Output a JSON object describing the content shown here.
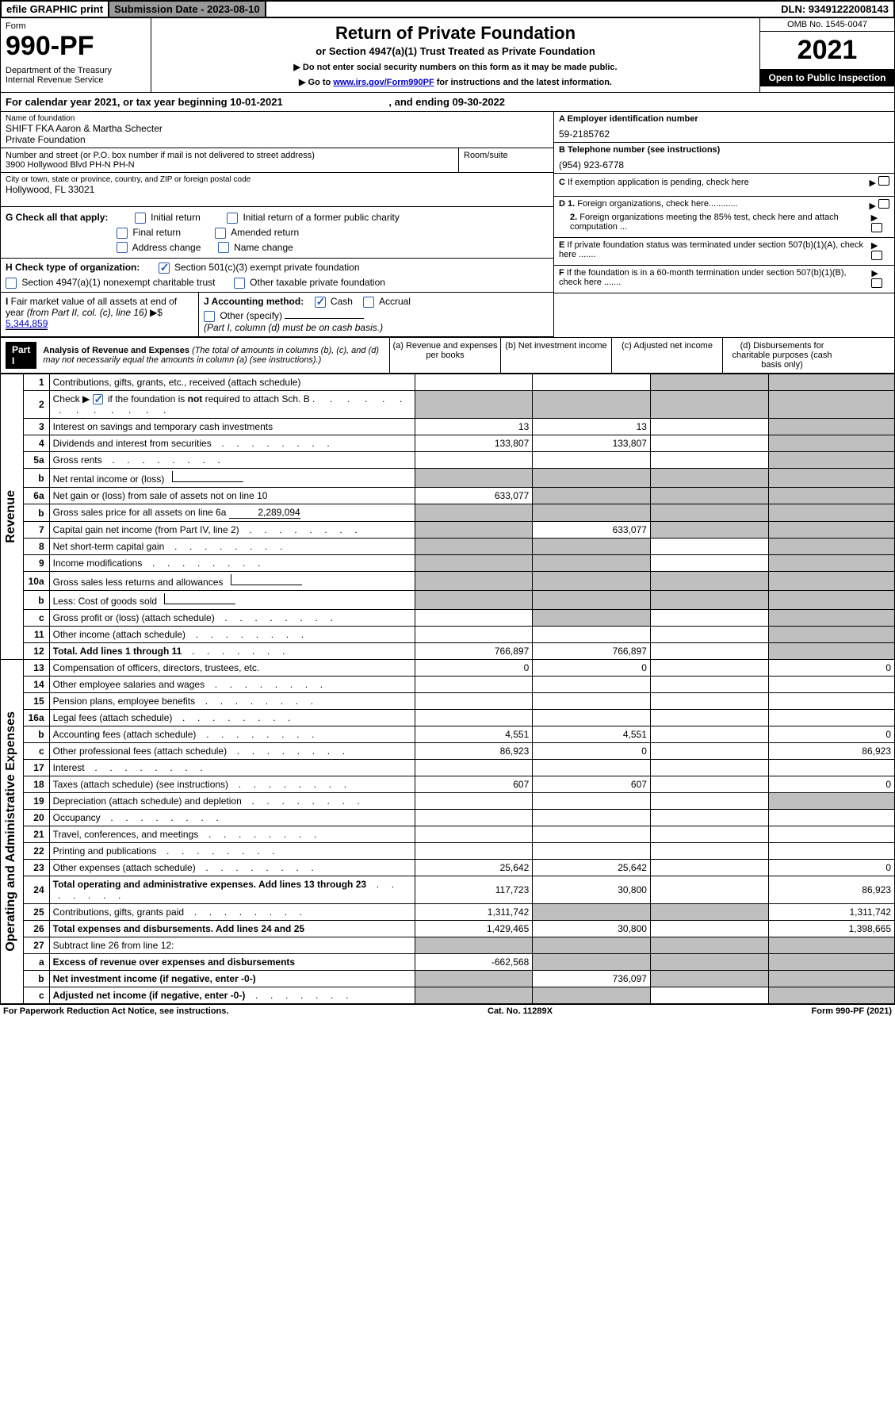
{
  "top": {
    "efile": "efile GRAPHIC print",
    "submission": "Submission Date - 2023-08-10",
    "dln": "DLN: 93491222008143"
  },
  "header": {
    "form_label": "Form",
    "form_number": "990-PF",
    "dept": "Department of the Treasury\nInternal Revenue Service",
    "title": "Return of Private Foundation",
    "subtitle": "or Section 4947(a)(1) Trust Treated as Private Foundation",
    "note1": "▶ Do not enter social security numbers on this form as it may be made public.",
    "note2_pre": "▶ Go to ",
    "note2_link": "www.irs.gov/Form990PF",
    "note2_post": " for instructions and the latest information.",
    "omb": "OMB No. 1545-0047",
    "year": "2021",
    "open": "Open to Public Inspection"
  },
  "cal_year": {
    "text": "For calendar year 2021, or tax year beginning 10-01-2021",
    "ending": ", and ending 09-30-2022"
  },
  "entity": {
    "name_label": "Name of foundation",
    "name": "SHIFT FKA Aaron & Martha Schecter\nPrivate Foundation",
    "addr_label": "Number and street (or P.O. box number if mail is not delivered to street address)",
    "addr": "3900 Hollywood Blvd PH-N PH-N",
    "room_label": "Room/suite",
    "city_label": "City or town, state or province, country, and ZIP or foreign postal code",
    "city": "Hollywood, FL  33021",
    "ein_label": "A Employer identification number",
    "ein": "59-2185762",
    "phone_label": "B Telephone number (see instructions)",
    "phone": "(954) 923-6778",
    "c_label": "C If exemption application is pending, check here",
    "d1_label": "D 1. Foreign organizations, check here............",
    "d2_label": "2. Foreign organizations meeting the 85% test, check here and attach computation ...",
    "e_label": "E If private foundation status was terminated under section 507(b)(1)(A), check here .......",
    "f_label": "F If the foundation is in a 60-month termination under section 507(b)(1)(B), check here .......",
    "g_label": "G Check all that apply:",
    "g_initial": "Initial return",
    "g_initial_former": "Initial return of a former public charity",
    "g_final": "Final return",
    "g_amended": "Amended return",
    "g_addr": "Address change",
    "g_name": "Name change",
    "h_label": "H Check type of organization:",
    "h_501c3": "Section 501(c)(3) exempt private foundation",
    "h_4947": "Section 4947(a)(1) nonexempt charitable trust",
    "h_other": "Other taxable private foundation",
    "i_label": "I Fair market value of all assets at end of year (from Part II, col. (c), line 16) ▶$ ",
    "i_value": "5,344,859",
    "j_label": "J Accounting method:",
    "j_cash": "Cash",
    "j_accrual": "Accrual",
    "j_other": "Other (specify)",
    "j_note": "(Part I, column (d) must be on cash basis.)"
  },
  "part1": {
    "label": "Part I",
    "title": "Analysis of Revenue and Expenses",
    "title_note": " (The total of amounts in columns (b), (c), and (d) may not necessarily equal the amounts in column (a) (see instructions).)",
    "col_a": "(a)   Revenue and expenses per books",
    "col_b": "(b)   Net investment income",
    "col_c": "(c)   Adjusted net income",
    "col_d": "(d)   Disbursements for charitable purposes (cash basis only)"
  },
  "side_labels": {
    "revenue": "Revenue",
    "expenses": "Operating and Administrative Expenses"
  },
  "rows": [
    {
      "n": "1",
      "desc": "Contributions, gifts, grants, etc., received (attach schedule)",
      "a": "",
      "b": "",
      "c": "g",
      "d": "g"
    },
    {
      "n": "2",
      "desc": "Check ▶ ☑ if the foundation is not required to attach Sch. B",
      "a": "g",
      "b": "g",
      "c": "g",
      "d": "g",
      "dotfill": true,
      "bold_not": true
    },
    {
      "n": "3",
      "desc": "Interest on savings and temporary cash investments",
      "a": "13",
      "b": "13",
      "c": "",
      "d": "g"
    },
    {
      "n": "4",
      "desc": "Dividends and interest from securities",
      "a": "133,807",
      "b": "133,807",
      "c": "",
      "d": "g",
      "dots": true
    },
    {
      "n": "5a",
      "desc": "Gross rents",
      "a": "",
      "b": "",
      "c": "",
      "d": "g",
      "dots": true
    },
    {
      "n": "b",
      "desc": "Net rental income or (loss)",
      "a": "g",
      "b": "g",
      "c": "g",
      "d": "g",
      "inline_blank": true
    },
    {
      "n": "6a",
      "desc": "Net gain or (loss) from sale of assets not on line 10",
      "a": "633,077",
      "b": "g",
      "c": "g",
      "d": "g"
    },
    {
      "n": "b",
      "desc": "Gross sales price for all assets on line 6a",
      "a": "g",
      "b": "g",
      "c": "g",
      "d": "g",
      "inline_val": "2,289,094"
    },
    {
      "n": "7",
      "desc": "Capital gain net income (from Part IV, line 2)",
      "a": "g",
      "b": "633,077",
      "c": "g",
      "d": "g",
      "dots": true
    },
    {
      "n": "8",
      "desc": "Net short-term capital gain",
      "a": "g",
      "b": "g",
      "c": "",
      "d": "g",
      "dots": true
    },
    {
      "n": "9",
      "desc": "Income modifications",
      "a": "g",
      "b": "g",
      "c": "",
      "d": "g",
      "dots": true
    },
    {
      "n": "10a",
      "desc": "Gross sales less returns and allowances",
      "a": "g",
      "b": "g",
      "c": "g",
      "d": "g",
      "inline_blank": true
    },
    {
      "n": "b",
      "desc": "Less: Cost of goods sold",
      "a": "g",
      "b": "g",
      "c": "g",
      "d": "g",
      "dots": true,
      "inline_blank": true
    },
    {
      "n": "c",
      "desc": "Gross profit or (loss) (attach schedule)",
      "a": "",
      "b": "g",
      "c": "",
      "d": "g",
      "dots": true
    },
    {
      "n": "11",
      "desc": "Other income (attach schedule)",
      "a": "",
      "b": "",
      "c": "",
      "d": "g",
      "dots": true
    },
    {
      "n": "12",
      "desc": "Total. Add lines 1 through 11",
      "a": "766,897",
      "b": "766,897",
      "c": "",
      "d": "g",
      "bold": true,
      "dots": true
    },
    {
      "n": "13",
      "desc": "Compensation of officers, directors, trustees, etc.",
      "a": "0",
      "b": "0",
      "c": "",
      "d": "0"
    },
    {
      "n": "14",
      "desc": "Other employee salaries and wages",
      "a": "",
      "b": "",
      "c": "",
      "d": "",
      "dots": true
    },
    {
      "n": "15",
      "desc": "Pension plans, employee benefits",
      "a": "",
      "b": "",
      "c": "",
      "d": "",
      "dots": true
    },
    {
      "n": "16a",
      "desc": "Legal fees (attach schedule)",
      "a": "",
      "b": "",
      "c": "",
      "d": "",
      "dots": true
    },
    {
      "n": "b",
      "desc": "Accounting fees (attach schedule)",
      "a": "4,551",
      "b": "4,551",
      "c": "",
      "d": "0",
      "dots": true
    },
    {
      "n": "c",
      "desc": "Other professional fees (attach schedule)",
      "a": "86,923",
      "b": "0",
      "c": "",
      "d": "86,923",
      "dots": true
    },
    {
      "n": "17",
      "desc": "Interest",
      "a": "",
      "b": "",
      "c": "",
      "d": "",
      "dots": true
    },
    {
      "n": "18",
      "desc": "Taxes (attach schedule) (see instructions)",
      "a": "607",
      "b": "607",
      "c": "",
      "d": "0",
      "dots": true
    },
    {
      "n": "19",
      "desc": "Depreciation (attach schedule) and depletion",
      "a": "",
      "b": "",
      "c": "",
      "d": "g",
      "dots": true
    },
    {
      "n": "20",
      "desc": "Occupancy",
      "a": "",
      "b": "",
      "c": "",
      "d": "",
      "dots": true
    },
    {
      "n": "21",
      "desc": "Travel, conferences, and meetings",
      "a": "",
      "b": "",
      "c": "",
      "d": "",
      "dots": true
    },
    {
      "n": "22",
      "desc": "Printing and publications",
      "a": "",
      "b": "",
      "c": "",
      "d": "",
      "dots": true
    },
    {
      "n": "23",
      "desc": "Other expenses (attach schedule)",
      "a": "25,642",
      "b": "25,642",
      "c": "",
      "d": "0",
      "dots": true
    },
    {
      "n": "24",
      "desc": "Total operating and administrative expenses. Add lines 13 through 23",
      "a": "117,723",
      "b": "30,800",
      "c": "",
      "d": "86,923",
      "bold": true,
      "dots": true
    },
    {
      "n": "25",
      "desc": "Contributions, gifts, grants paid",
      "a": "1,311,742",
      "b": "g",
      "c": "g",
      "d": "1,311,742",
      "dots": true
    },
    {
      "n": "26",
      "desc": "Total expenses and disbursements. Add lines 24 and 25",
      "a": "1,429,465",
      "b": "30,800",
      "c": "",
      "d": "1,398,665",
      "bold": true
    },
    {
      "n": "27",
      "desc": "Subtract line 26 from line 12:",
      "a": "g",
      "b": "g",
      "c": "g",
      "d": "g"
    },
    {
      "n": "a",
      "desc": "Excess of revenue over expenses and disbursements",
      "a": "-662,568",
      "b": "g",
      "c": "g",
      "d": "g",
      "bold": true
    },
    {
      "n": "b",
      "desc": "Net investment income (if negative, enter -0-)",
      "a": "g",
      "b": "736,097",
      "c": "g",
      "d": "g",
      "bold": true
    },
    {
      "n": "c",
      "desc": "Adjusted net income (if negative, enter -0-)",
      "a": "g",
      "b": "g",
      "c": "",
      "d": "g",
      "bold": true,
      "dots": true
    }
  ],
  "footer": {
    "left": "For Paperwork Reduction Act Notice, see instructions.",
    "center": "Cat. No. 11289X",
    "right": "Form 990-PF (2021)"
  },
  "colors": {
    "grey_cell": "#bfbfbf",
    "link": "#0000cc",
    "check_blue": "#2a5db0"
  }
}
